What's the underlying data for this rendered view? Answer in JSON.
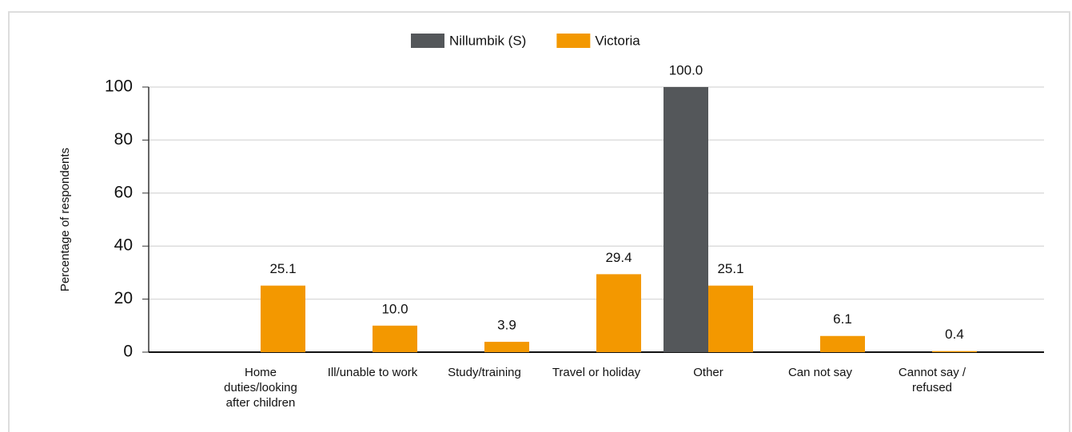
{
  "chart_data": {
    "type": "bar",
    "y_label": "Percentage of respondents",
    "categories": [
      "Home duties/looking after children",
      "Ill/unable to work",
      "Study/training",
      "Travel or holiday",
      "Other",
      "Can not say",
      "Cannot say / refused"
    ],
    "series": [
      {
        "name": "Nillumbik (S)",
        "color": "#54575a",
        "values": [
          null,
          null,
          null,
          null,
          100.0,
          null,
          null
        ],
        "value_labels": [
          null,
          null,
          null,
          null,
          "100.0",
          null,
          null
        ]
      },
      {
        "name": "Victoria",
        "color": "#f39800",
        "values": [
          25.1,
          10.0,
          3.9,
          29.4,
          25.1,
          6.1,
          0.4
        ],
        "value_labels": [
          "25.1",
          "10.0",
          "3.9",
          "29.4",
          "25.1",
          "6.1",
          "0.4"
        ]
      }
    ],
    "ylim": [
      0,
      100
    ],
    "yticks": [
      0,
      20,
      40,
      60,
      80,
      100
    ],
    "grid": true,
    "legend": "top"
  }
}
